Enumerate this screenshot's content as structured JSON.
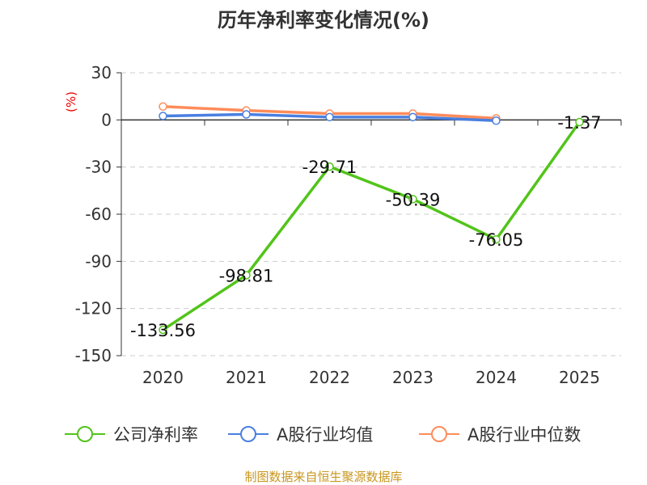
{
  "chart_data": {
    "type": "line",
    "title": "历年净利率变化情况(%)",
    "ylabel": "(%)",
    "categories": [
      "2020",
      "2021",
      "2022",
      "2023",
      "2024",
      "2025"
    ],
    "ylim": [
      -150,
      30
    ],
    "yticks": [
      30,
      0,
      -30,
      -60,
      -90,
      -120,
      -150
    ],
    "grid": true,
    "legend_placement": "bottom",
    "series": [
      {
        "name": "公司净利率",
        "color": "#52c41a",
        "values": [
          -133.56,
          -98.81,
          -29.71,
          -50.39,
          -76.05,
          -1.37
        ],
        "labels": [
          "-133.56",
          "-98.81",
          "-29.71",
          "-50.39",
          "-76.05",
          "-1.37"
        ]
      },
      {
        "name": "A股行业均值",
        "color": "#4a7fe0",
        "values": [
          2.5,
          3.5,
          1.8,
          1.8,
          -0.5,
          null
        ]
      },
      {
        "name": "A股行业中位数",
        "color": "#ff8c5a",
        "values": [
          8.5,
          6.0,
          4.0,
          4.0,
          1.0,
          null
        ]
      }
    ]
  },
  "source": "制图数据来自恒生聚源数据库"
}
